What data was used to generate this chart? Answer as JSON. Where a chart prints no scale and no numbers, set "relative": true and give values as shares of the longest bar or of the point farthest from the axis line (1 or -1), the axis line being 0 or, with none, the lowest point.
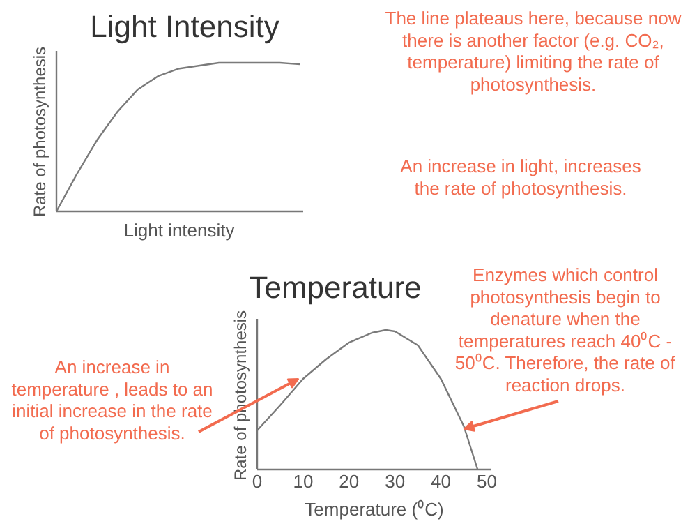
{
  "chart_data": [
    {
      "type": "line",
      "title": "Light Intensity",
      "xlabel": "Light intensity",
      "ylabel": "Rate of photosynthesis",
      "relative": true,
      "tick_labels": false,
      "grid": false,
      "categories": [
        null,
        null,
        null,
        null,
        null,
        null,
        null,
        null,
        null,
        null,
        null,
        null,
        null
      ],
      "series": [
        {
          "color": "#7a7a7a",
          "values": [
            0,
            0.25,
            0.48,
            0.67,
            0.82,
            0.91,
            0.96,
            0.98,
            1.0,
            1.0,
            1.0,
            1.0,
            0.99
          ]
        }
      ],
      "annotations": [
        "The line plateaus here, because now\nthere is another factor (e.g. CO₂,\ntemperature) limiting the rate of\nphotosynthesis.",
        "An increase in light, increases\nthe rate of photosynthesis."
      ]
    },
    {
      "type": "line",
      "title": "Temperature",
      "xlabel": "Temperature (⁰C)",
      "ylabel": "Rate of photosynthesis",
      "relative": true,
      "tick_labels": "x",
      "grid": false,
      "xlim": [
        0,
        51
      ],
      "xticks": [
        0,
        10,
        20,
        30,
        40,
        50
      ],
      "x": [
        0,
        5,
        10,
        15,
        20,
        25,
        28,
        30,
        35,
        40,
        45,
        48
      ],
      "series": [
        {
          "color": "#7a7a7a",
          "values": [
            0.28,
            0.46,
            0.65,
            0.79,
            0.91,
            0.98,
            1.0,
            0.99,
            0.89,
            0.65,
            0.31,
            0
          ]
        }
      ],
      "annotations": [
        {
          "text": "An increase in\ntemperature , leads to an\ninitial increase in the rate\nof photosynthesis.",
          "x": 9,
          "y": 0.65
        },
        {
          "text": "Enzymes which control\nphotosynthesis begin to\ndenature when the\ntemperatures reach 40⁰C -\n50⁰C. Therefore, the rate of\nreaction drops.",
          "x": 45,
          "y": 0.29
        }
      ]
    }
  ]
}
